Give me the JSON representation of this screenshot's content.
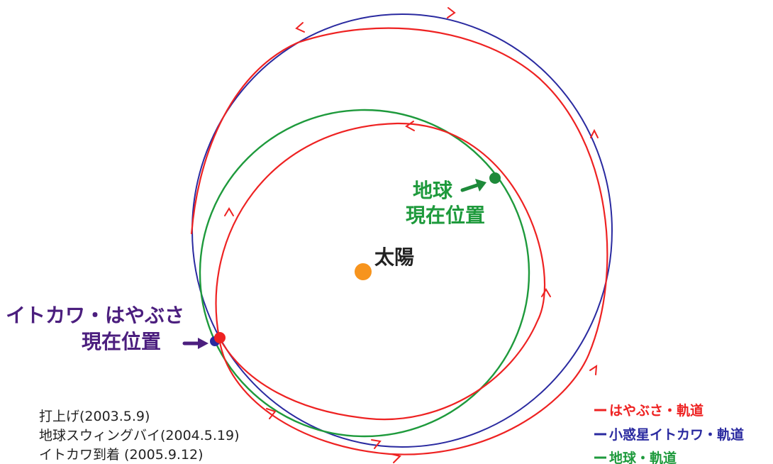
{
  "colors": {
    "hayabusa": "#ee2222",
    "itokawa": "#2a2aa0",
    "earth": "#1e9a3c",
    "sun": "#f7941d",
    "pointer_purple": "#4b1e7e",
    "pointer_green": "#1e8a3a",
    "text": "#222222"
  },
  "labels": {
    "sun": "太陽",
    "earth_line1": "地球",
    "earth_line2": "現在位置",
    "itokawa_line1": "イトカワ・はやぶさ",
    "itokawa_line2": "現在位置"
  },
  "timeline": [
    "打上げ(2003.5.9)",
    "地球スウィングバイ(2004.5.19)",
    "イトカワ到着 (2005.9.12)"
  ],
  "legend": [
    {
      "label": "はやぶさ・軌道",
      "color": "#ee2222",
      "icon": "red-dash"
    },
    {
      "label": "小惑星イトカワ・軌道",
      "color": "#2a2aa0",
      "icon": "blue-dash"
    },
    {
      "label": "地球・軌道",
      "color": "#1e9a3c",
      "icon": "green-dash"
    }
  ]
}
